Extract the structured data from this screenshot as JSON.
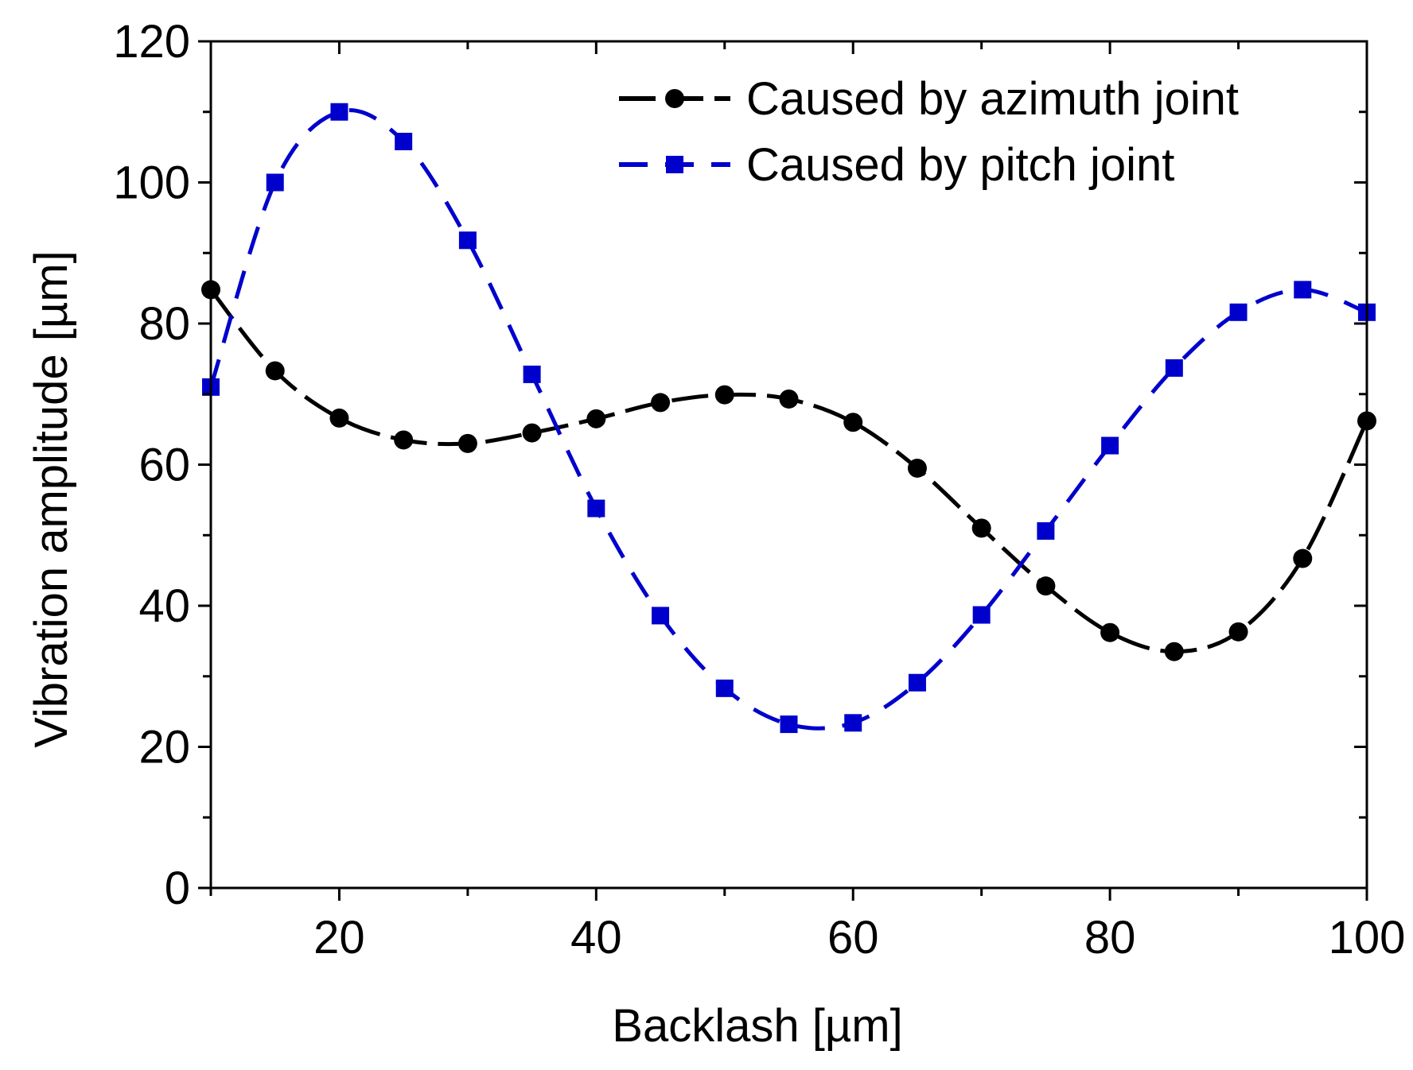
{
  "chart_data": {
    "type": "line",
    "title": "",
    "xlabel": "Backlash  [µm]",
    "ylabel": "Vibration amplitude [µm]",
    "xlim": [
      10,
      100
    ],
    "ylim": [
      0,
      120
    ],
    "x_ticks": [
      20,
      40,
      60,
      80,
      100
    ],
    "x_tick_labels": [
      "20",
      "40",
      "60",
      "80",
      "100"
    ],
    "y_ticks": [
      0,
      20,
      40,
      60,
      80,
      100,
      120
    ],
    "y_tick_labels": [
      "0",
      "20",
      "40",
      "60",
      "80",
      "100",
      "120"
    ],
    "x_minor_ticks": [
      10,
      30,
      50,
      70,
      90
    ],
    "y_minor_ticks": [
      10,
      30,
      50,
      70,
      90,
      110
    ],
    "grid": false,
    "legend_position": "top-right",
    "x": [
      10,
      15,
      20,
      25,
      30,
      35,
      40,
      45,
      50,
      55,
      60,
      65,
      70,
      75,
      80,
      85,
      90,
      95,
      100
    ],
    "series": [
      {
        "name": "Caused by azimuth joint",
        "color": "#000000",
        "marker": "circle",
        "line_style": "long-dash",
        "values": [
          84.8,
          73.3,
          66.6,
          63.5,
          63.0,
          64.5,
          66.5,
          68.8,
          69.9,
          69.3,
          66.0,
          59.5,
          51.0,
          42.8,
          36.2,
          33.5,
          36.3,
          46.7,
          66.2
        ]
      },
      {
        "name": "Caused by pitch joint",
        "color": "#0000cc",
        "marker": "square",
        "line_style": "dash",
        "values": [
          71.0,
          100.0,
          110.0,
          105.8,
          91.8,
          72.8,
          53.8,
          38.6,
          28.3,
          23.2,
          23.4,
          29.1,
          38.7,
          50.6,
          62.7,
          73.7,
          81.6,
          84.8,
          81.6
        ]
      }
    ]
  }
}
